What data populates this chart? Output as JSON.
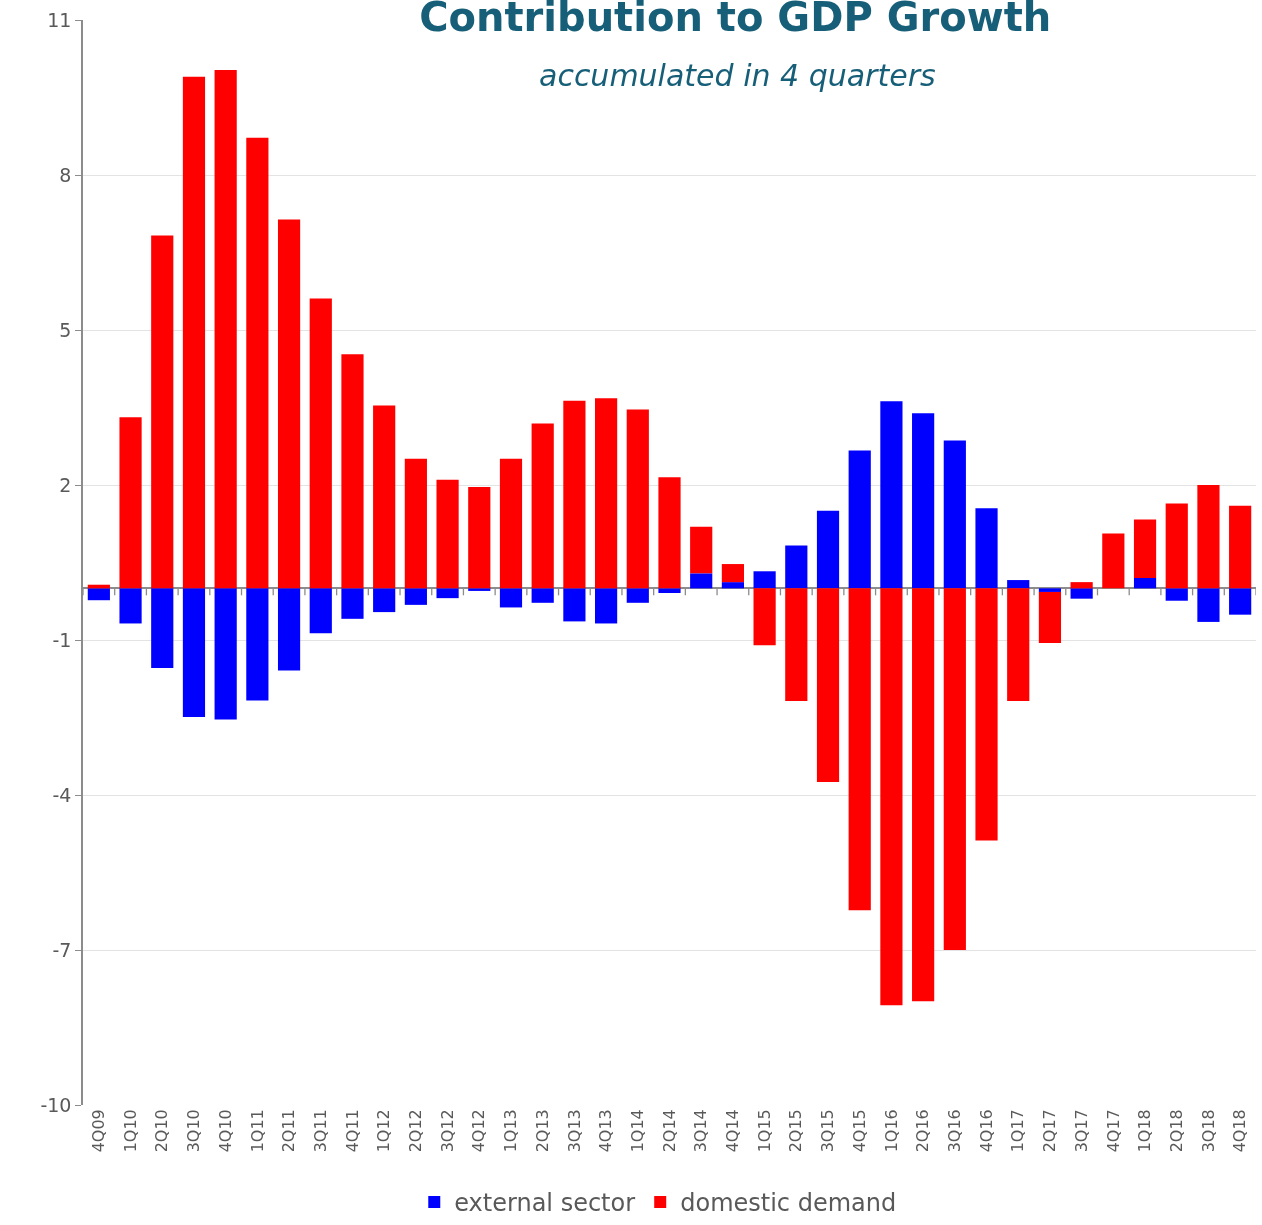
{
  "chart_data": {
    "type": "bar",
    "title": "Contribution to GDP Growth",
    "subtitle": "accumulated in 4 quarters",
    "categories": [
      "4Q09",
      "1Q10",
      "2Q10",
      "3Q10",
      "4Q10",
      "1Q11",
      "2Q11",
      "3Q11",
      "4Q11",
      "1Q12",
      "2Q12",
      "3Q12",
      "4Q12",
      "1Q13",
      "2Q13",
      "3Q13",
      "4Q13",
      "1Q14",
      "2Q14",
      "3Q14",
      "4Q14",
      "1Q15",
      "2Q15",
      "3Q15",
      "4Q15",
      "1Q16",
      "2Q16",
      "3Q16",
      "4Q16",
      "1Q17",
      "2Q17",
      "3Q17",
      "4Q17",
      "1Q18",
      "2Q18",
      "3Q18",
      "4Q18"
    ],
    "series": [
      {
        "name": "external sector",
        "color": "#0000ff",
        "values": [
          -0.23,
          -0.68,
          -1.54,
          -2.49,
          -2.54,
          -2.17,
          -1.59,
          -0.87,
          -0.59,
          -0.46,
          -0.32,
          -0.19,
          -0.05,
          -0.37,
          -0.28,
          -0.64,
          -0.68,
          -0.28,
          -0.09,
          0.29,
          0.12,
          0.33,
          0.83,
          1.5,
          2.67,
          3.62,
          3.39,
          2.86,
          1.55,
          0.16,
          -0.07,
          -0.2,
          0,
          0.2,
          -0.24,
          -0.65,
          -0.51
        ]
      },
      {
        "name": "domestic demand",
        "color": "#ff0000",
        "values": [
          0.07,
          3.31,
          6.83,
          9.9,
          10.03,
          8.72,
          7.14,
          5.61,
          4.53,
          3.54,
          2.51,
          2.1,
          1.96,
          2.51,
          3.19,
          3.63,
          3.68,
          3.46,
          2.15,
          0.9,
          0.35,
          -1.1,
          -2.18,
          -3.75,
          -6.23,
          -8.07,
          -7.99,
          -7.0,
          -4.88,
          -2.18,
          -0.99,
          0.12,
          1.06,
          1.13,
          1.64,
          2.0,
          1.6
        ]
      }
    ],
    "stacked": true,
    "ylim": [
      -10,
      11
    ],
    "yticks": [
      -10,
      -7,
      -4,
      -1,
      2,
      5,
      8,
      11
    ],
    "grid": "y",
    "legend": "bottom"
  }
}
